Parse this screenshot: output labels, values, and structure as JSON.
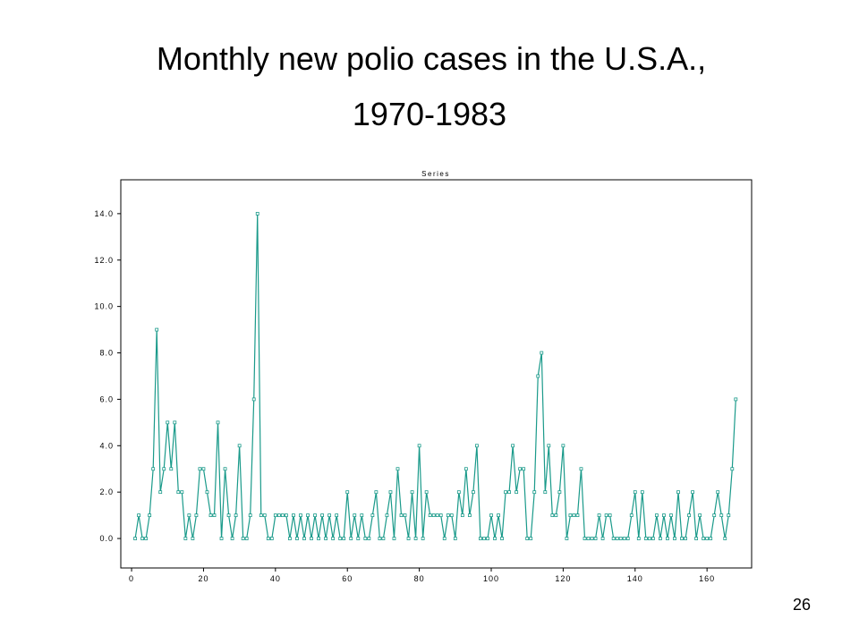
{
  "slide_number": "26",
  "chart_data": {
    "type": "line",
    "title": "Monthly new polio cases in the U.S.A.,",
    "subtitle": "1970-1983",
    "plot_label": "Series",
    "x": [
      1,
      2,
      3,
      4,
      5,
      6,
      7,
      8,
      9,
      10,
      11,
      12,
      13,
      14,
      15,
      16,
      17,
      18,
      19,
      20,
      21,
      22,
      23,
      24,
      25,
      26,
      27,
      28,
      29,
      30,
      31,
      32,
      33,
      34,
      35,
      36,
      37,
      38,
      39,
      40,
      41,
      42,
      43,
      44,
      45,
      46,
      47,
      48,
      49,
      50,
      51,
      52,
      53,
      54,
      55,
      56,
      57,
      58,
      59,
      60,
      61,
      62,
      63,
      64,
      65,
      66,
      67,
      68,
      69,
      70,
      71,
      72,
      73,
      74,
      75,
      76,
      77,
      78,
      79,
      80,
      81,
      82,
      83,
      84,
      85,
      86,
      87,
      88,
      89,
      90,
      91,
      92,
      93,
      94,
      95,
      96,
      97,
      98,
      99,
      100,
      101,
      102,
      103,
      104,
      105,
      106,
      107,
      108,
      109,
      110,
      111,
      112,
      113,
      114,
      115,
      116,
      117,
      118,
      119,
      120,
      121,
      122,
      123,
      124,
      125,
      126,
      127,
      128,
      129,
      130,
      131,
      132,
      133,
      134,
      135,
      136,
      137,
      138,
      139,
      140,
      141,
      142,
      143,
      144,
      145,
      146,
      147,
      148,
      149,
      150,
      151,
      152,
      153,
      154,
      155,
      156,
      157,
      158,
      159,
      160,
      161,
      162,
      163,
      164,
      165,
      166,
      167,
      168
    ],
    "series": [
      {
        "name": "Series",
        "color": "#1a9a8a",
        "values": [
          0,
          1,
          0,
          0,
          1,
          3,
          9,
          2,
          3,
          5,
          3,
          5,
          2,
          2,
          0,
          1,
          0,
          1,
          3,
          3,
          2,
          1,
          1,
          5,
          0,
          3,
          1,
          0,
          1,
          4,
          0,
          0,
          1,
          6,
          14,
          1,
          1,
          0,
          0,
          1,
          1,
          1,
          1,
          0,
          1,
          0,
          1,
          0,
          1,
          0,
          1,
          0,
          1,
          0,
          1,
          0,
          1,
          0,
          0,
          2,
          0,
          1,
          0,
          1,
          0,
          0,
          1,
          2,
          0,
          0,
          1,
          2,
          0,
          3,
          1,
          1,
          0,
          2,
          0,
          4,
          0,
          2,
          1,
          1,
          1,
          1,
          0,
          1,
          1,
          0,
          2,
          1,
          3,
          1,
          2,
          4,
          0,
          0,
          0,
          1,
          0,
          1,
          0,
          2,
          2,
          4,
          2,
          3,
          3,
          0,
          0,
          2,
          7,
          8,
          2,
          4,
          1,
          1,
          2,
          4,
          0,
          1,
          1,
          1,
          3,
          0,
          0,
          0,
          0,
          1,
          0,
          1,
          1,
          0,
          0,
          0,
          0,
          0,
          1,
          2,
          0,
          2,
          0,
          0,
          0,
          1,
          0,
          1,
          0,
          1,
          0,
          2,
          0,
          0,
          1,
          2,
          0,
          1,
          0,
          0,
          0,
          1,
          2,
          1,
          0,
          1,
          3,
          6
        ]
      }
    ],
    "xlim": [
      -3,
      172.4
    ],
    "ylim": [
      -1.27,
      15.46
    ],
    "xticks": [
      0,
      20,
      40,
      60,
      80,
      100,
      120,
      140,
      160
    ],
    "yticks": [
      {
        "value": 0,
        "label": "0.0"
      },
      {
        "value": 2,
        "label": "2.0"
      },
      {
        "value": 4,
        "label": "4.0"
      },
      {
        "value": 6,
        "label": "6.0"
      },
      {
        "value": 8,
        "label": "8.0"
      },
      {
        "value": 10,
        "label": "10.0"
      },
      {
        "value": 12,
        "label": "12.0"
      },
      {
        "value": 14,
        "label": "14.0"
      }
    ]
  }
}
